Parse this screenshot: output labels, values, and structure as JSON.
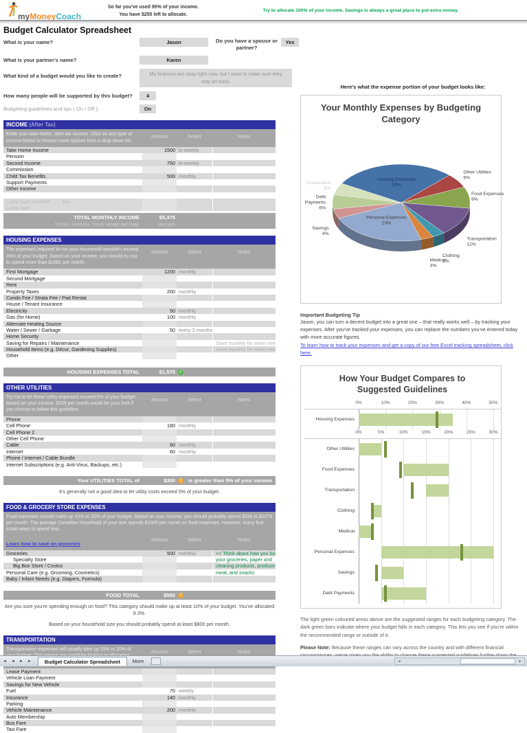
{
  "header": {
    "logo": {
      "word1": "my",
      "word2": "Money",
      "word3": "Coach",
      "color1": "#595959",
      "color2": "#f08a24",
      "color3": "#45b5c6"
    },
    "status_line1": "So far you've used 95% of your income.",
    "status_line2": "You have $255 left to allocate.",
    "tip": "Try to allocate 100% of your income. Savings is always a great place to put extra money.",
    "tip_color": "#00a651"
  },
  "page_title": "Budget Calculator Spreadsheet",
  "form": {
    "q_name": "What is your name?",
    "name_value": "Jason",
    "q_spouse": "Do you have a spouse or partner?",
    "spouse_value": "Yes",
    "q_partner": "What is your partner's name?",
    "partner_value": "Karen",
    "q_budget_kind": "What kind of a budget would you like to create?",
    "budget_kind_value": "My finances are okay right now, but I want to make sure they stay on track.",
    "q_people": "How many people will be supported by this budget?",
    "people_value": "4",
    "q_guidelines": "Budgeting guidelines and tips ( On / Off ):",
    "guidelines_value": "On"
  },
  "columns": {
    "amount": "Amount",
    "select": "Select",
    "notes": "Notes"
  },
  "colors": {
    "header_blue": "#2f31a3",
    "row_gray": "#d9d9d9",
    "desc_gray": "#a6a6a6",
    "check_green": "#54b948",
    "warn_amber": "#f0a430",
    "note_green": "#00843d"
  },
  "sections": [
    {
      "title": "INCOME",
      "title_suffix": " (After Tax)",
      "description": "Enter your take-home, after tax income. Click on any type of income below to choose more options from a drop down list.",
      "rows": [
        {
          "label": "Take Home Income",
          "amount": "1500",
          "select": "bi-weekly"
        },
        {
          "label": "Pension"
        },
        {
          "label": "Second Income",
          "amount": "750",
          "select": "bi-weekly"
        },
        {
          "label": "Commission"
        },
        {
          "label": "Child Tax Benefits",
          "amount": "500",
          "select": "monthly"
        },
        {
          "label": "Support Payments"
        },
        {
          "label": "Other Income"
        },
        {
          "label": "",
          "spacer": true
        },
        {
          "label": "Lump Sum Income?",
          "inline_value": "No",
          "muted": true
        },
        {
          "label": "Lump Sum",
          "muted": true
        }
      ],
      "totals": [
        {
          "label": "TOTAL MONTHLY INCOME",
          "value": "$5,375"
        },
        {
          "label": "TOTAL ANNUAL TAKE HOME INCOME",
          "value": "$64,500",
          "secondary": true
        }
      ]
    },
    {
      "title": "HOUSING EXPENSES",
      "title_suffix": "",
      "description": "The expenses required to run your household shouldn't exceed 35% of your budget. Based on your income, you should try not to spend more than $1881 per month.",
      "rows": [
        {
          "label": "First Mortgage",
          "amount": "1200",
          "select": "monthly"
        },
        {
          "label": "Second Mortgage"
        },
        {
          "label": "Rent"
        },
        {
          "label": "Property Taxes",
          "amount": "200",
          "select": "monthly"
        },
        {
          "label": "Condo Fee / Strata Fee / Pad Rental"
        },
        {
          "label": "House / Tenant Insurance"
        },
        {
          "label": "Electricity",
          "amount": "50",
          "select": "monthly"
        },
        {
          "label": "Gas (for Home)",
          "amount": "100",
          "select": "monthly"
        },
        {
          "label": "Alternate Heating Source"
        },
        {
          "label": "Water / Sewer / Garbage",
          "amount": "50",
          "select": "every 2 months"
        },
        {
          "label": "Home Security"
        },
        {
          "label": "Saving for Repairs / Maintenance",
          "note": "Save monthly for when needed"
        },
        {
          "label": "Household Items (e.g. Décor, Gardening Supplies)",
          "note": "Save monthly for when needed"
        },
        {
          "label": "Other"
        },
        {
          "label": "",
          "spacer": true
        }
      ],
      "totals": [
        {
          "label": "HOUSING EXPENSES TOTAL",
          "value": "$1,575",
          "icon": "check"
        }
      ]
    },
    {
      "title": "OTHER UTILITIES",
      "title_suffix": "",
      "description": "Try not to let these utility expenses exceed 5% of your budget. Based on your income, $269 per month would be your limit if you choose to follow this guideline.",
      "rows": [
        {
          "label": "Phone"
        },
        {
          "label": "Cell Phone",
          "amount": "180",
          "select": "monthly"
        },
        {
          "label": "Cell Phone 2"
        },
        {
          "label": "Other Cell Phone"
        },
        {
          "label": "Cable",
          "amount": "60",
          "select": "monthly"
        },
        {
          "label": "Internet",
          "amount": "60",
          "select": "monthly"
        },
        {
          "label": "Phone / Internet / Cable Bundle"
        },
        {
          "label": "Internet Subscriptions (e.g. Anti-Virus, Backups, etc.)"
        },
        {
          "label": "",
          "spacer": true
        }
      ],
      "totals": [
        {
          "label": "Your UTILITIES TOTAL of",
          "value": "$300",
          "icon": "warn",
          "post": "is greater than 5% of your income"
        }
      ],
      "footnote": [
        "It's generally not a good idea to let utility costs exceed 5% of your budget."
      ]
    },
    {
      "title": "FOOD & GROCERY STORE EXPENSES",
      "title_suffix": "",
      "description": "Food expenses should make up 10% to 20% of your budget. Based on your income, you should probably spend $538 to $1075 per month. The average Canadian household of your size spends $1000 per month on food expenses. However, many find smart ways to spend less.",
      "link": "Learn how to save on groceries",
      "rows": [
        {
          "label": "Groceries",
          "amount": "500",
          "select": "monthly",
          "note": "<< Think about how you buy",
          "note_color": "green"
        },
        {
          "label": "Specialty Store",
          "indent": true,
          "note": "your groceries, paper and",
          "note_color": "green"
        },
        {
          "label": "Big Box Store / Costco",
          "indent": true,
          "note": "cleaning products, produce,",
          "note_color": "green"
        },
        {
          "label": "Personal Care (e.g. Grooming, Cosmetics)",
          "note": "meat, and snacks",
          "note_color": "green"
        },
        {
          "label": "Baby / Infant Needs (e.g. Diapers, Formula)"
        },
        {
          "label": "",
          "spacer": true
        }
      ],
      "totals": [
        {
          "label": "FOOD TOTAL",
          "value": "$500",
          "icon": "warn"
        }
      ],
      "footnote": [
        "Are you sure you're spending enough on food? This category should make up at least 10% of your budget. You've allocated 9.3%.",
        "Based on your household size you should probably spend at least $800 per month."
      ]
    },
    {
      "title": "TRANSPORTATION",
      "title_suffix": "",
      "description": "Transportation expenses will usually take up 15% to 20% of your budget. This means you could be looking at allocating from $806 to $1075 per month.",
      "rows": [
        {
          "label": "Lease Payment"
        },
        {
          "label": "Vehicle Loan Payment"
        },
        {
          "label": "Savings for New Vehicle"
        },
        {
          "label": "Fuel",
          "amount": "70",
          "select": "weekly"
        },
        {
          "label": "Insurance",
          "amount": "140",
          "select": "monthly"
        },
        {
          "label": "Parking"
        },
        {
          "label": "Vehicle Maintenance",
          "amount": "200",
          "select": "monthly"
        },
        {
          "label": "Auto Membership"
        },
        {
          "label": "Bus Fare"
        },
        {
          "label": "Taxi Fare"
        }
      ],
      "totals": []
    }
  ],
  "right_column": {
    "heading": "Here's what the expense portion of your budget looks like:",
    "tip": {
      "heading": "Important Budgeting Tip",
      "body": "Jason, you can turn a decent budget into a great one – that really works well – by tracking your expenses. After you've tracked your expenses, you can replace the numbers you've entered today with more accurate figures.",
      "link": "To learn how to track your expenses and get a copy of our free Excel tracking spreadsheet, click here."
    },
    "explain": {
      "p1": "The light green coloured areas above are the suggested ranges for each budgeting category. The dark green bars indicate where your budget falls in each category. This lets you see if you're within the recommended range or outside of it.",
      "note_label": "Please Note:",
      "note_body": " Because these ranges can vary across the country and with different financial circumstances, we've given you the ability to change these suggested guidelines further down the page."
    }
  },
  "chart_data": [
    {
      "type": "pie",
      "title": "Your Monthly Expenses by Budgeting Category",
      "start_angle_deg": -60,
      "slices": [
        {
          "label": "Housing Expenses",
          "pct": 29,
          "color": "#4572a7",
          "inside": true
        },
        {
          "label": "Other Utilities",
          "pct": 6,
          "color": "#aa4643"
        },
        {
          "label": "Food Expenses",
          "pct": 9,
          "color": "#89a54e"
        },
        {
          "label": "Transportation",
          "pct": 12,
          "color": "#71588f"
        },
        {
          "label": "Clothing",
          "pct": 3,
          "color": "#4198af"
        },
        {
          "label": "Medical",
          "pct": 3,
          "color": "#db843d"
        },
        {
          "label": "Personal Expenses",
          "pct": 23,
          "color": "#93a9cf",
          "inside": true
        },
        {
          "label": "Savings",
          "pct": 4,
          "color": "#d19392"
        },
        {
          "label": "Debt Payments",
          "pct": 6,
          "color": "#b9cd96",
          "wrap": true
        },
        {
          "label": "Unallocated",
          "pct": 5,
          "color": "#d6e2bd",
          "muted": true
        }
      ]
    },
    {
      "type": "bar-range",
      "title": "How Your Budget Compares to Suggested Guidelines",
      "range_color": "#c3d69b",
      "marker_color": "#76923c",
      "housing_axis": {
        "max": 50,
        "ticks": [
          "0%",
          "10%",
          "20%",
          "30%",
          "40%",
          "50%"
        ]
      },
      "main_axis": {
        "max": 30,
        "ticks": [
          "0%",
          "5%",
          "10%",
          "15%",
          "20%",
          "25%",
          "30%"
        ]
      },
      "rows": [
        {
          "label": "Housing Expenses",
          "axis": "housing",
          "range": [
            0,
            35
          ],
          "value": 29
        },
        {
          "label": "Other Utilities",
          "axis": "main",
          "range": [
            0,
            5
          ],
          "value": 6
        },
        {
          "label": "Food Expenses",
          "axis": "main",
          "range": [
            10,
            20
          ],
          "value": 9.3
        },
        {
          "label": "Transportation",
          "axis": "main",
          "range": [
            15,
            20
          ],
          "value": 12
        },
        {
          "label": "Clothing",
          "axis": "main",
          "range": [
            3,
            5
          ],
          "value": 3
        },
        {
          "label": "Medical",
          "axis": "main",
          "range": [
            0,
            3
          ],
          "value": 3
        },
        {
          "label": "Personal Expenses",
          "axis": "main",
          "range": [
            5,
            30
          ],
          "value": 23
        },
        {
          "label": "Savings",
          "axis": "main",
          "range": [
            5,
            10
          ],
          "value": 4
        },
        {
          "label": "Debt Payments",
          "axis": "main",
          "range": [
            5,
            15
          ],
          "value": 6
        }
      ]
    }
  ],
  "sheetbar": {
    "nav_first": "◄",
    "nav_prev": "◄",
    "nav_next": "►",
    "nav_last": "►",
    "active_tab": "Budget Calculator Spreadsheet",
    "more_tab": "More"
  }
}
